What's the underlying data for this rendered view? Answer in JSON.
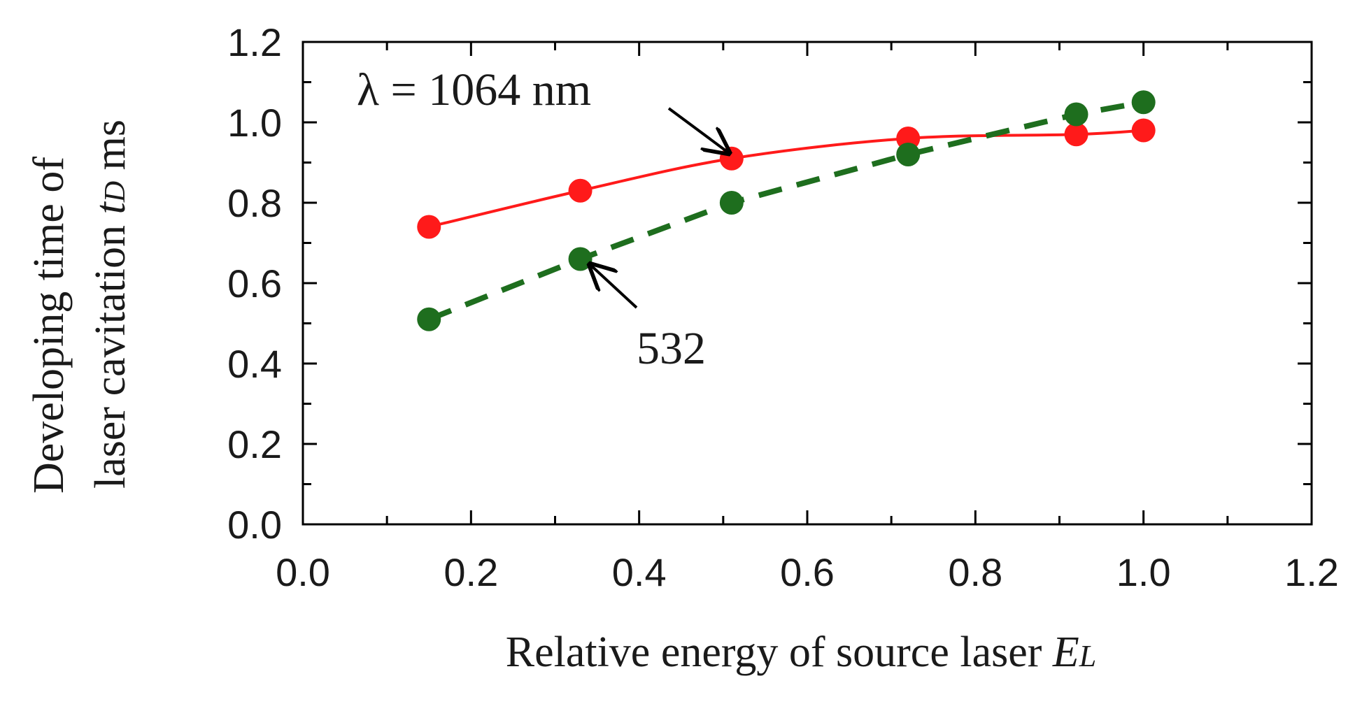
{
  "chart_data": {
    "type": "line",
    "title": "",
    "xlabel": {
      "text": "Relative energy of source laser ",
      "var": "E",
      "sub": "L"
    },
    "ylabel": {
      "line1": "Developing time of",
      "line2_text": "laser cavitation ",
      "line2_var": "t",
      "line2_sub": "D",
      "line2_unit": " ms"
    },
    "xlim": [
      0,
      1.2
    ],
    "ylim": [
      0,
      1.2
    ],
    "xticks": [
      "0.0",
      "0.2",
      "0.4",
      "0.6",
      "0.8",
      "1.0",
      "1.2"
    ],
    "yticks": [
      "0.0",
      "0.2",
      "0.4",
      "0.6",
      "0.8",
      "1.0",
      "1.2"
    ],
    "grid": false,
    "series": [
      {
        "name": "1064 nm",
        "color": "#ff1a1a",
        "line_style": "solid",
        "x": [
          0.15,
          0.33,
          0.51,
          0.72,
          0.92,
          1.0
        ],
        "y": [
          0.74,
          0.83,
          0.91,
          0.96,
          0.97,
          0.98
        ]
      },
      {
        "name": "532 nm",
        "color": "#1e6e1e",
        "line_style": "dashed",
        "x": [
          0.15,
          0.33,
          0.51,
          0.72,
          0.92,
          1.0
        ],
        "y": [
          0.51,
          0.66,
          0.8,
          0.92,
          1.02,
          1.05
        ]
      }
    ],
    "annotations": [
      {
        "text": "λ = 1064 nm",
        "points_to": {
          "x": 0.51,
          "y": 0.91
        }
      },
      {
        "text": "532",
        "points_to": {
          "x": 0.33,
          "y": 0.66
        }
      }
    ]
  }
}
